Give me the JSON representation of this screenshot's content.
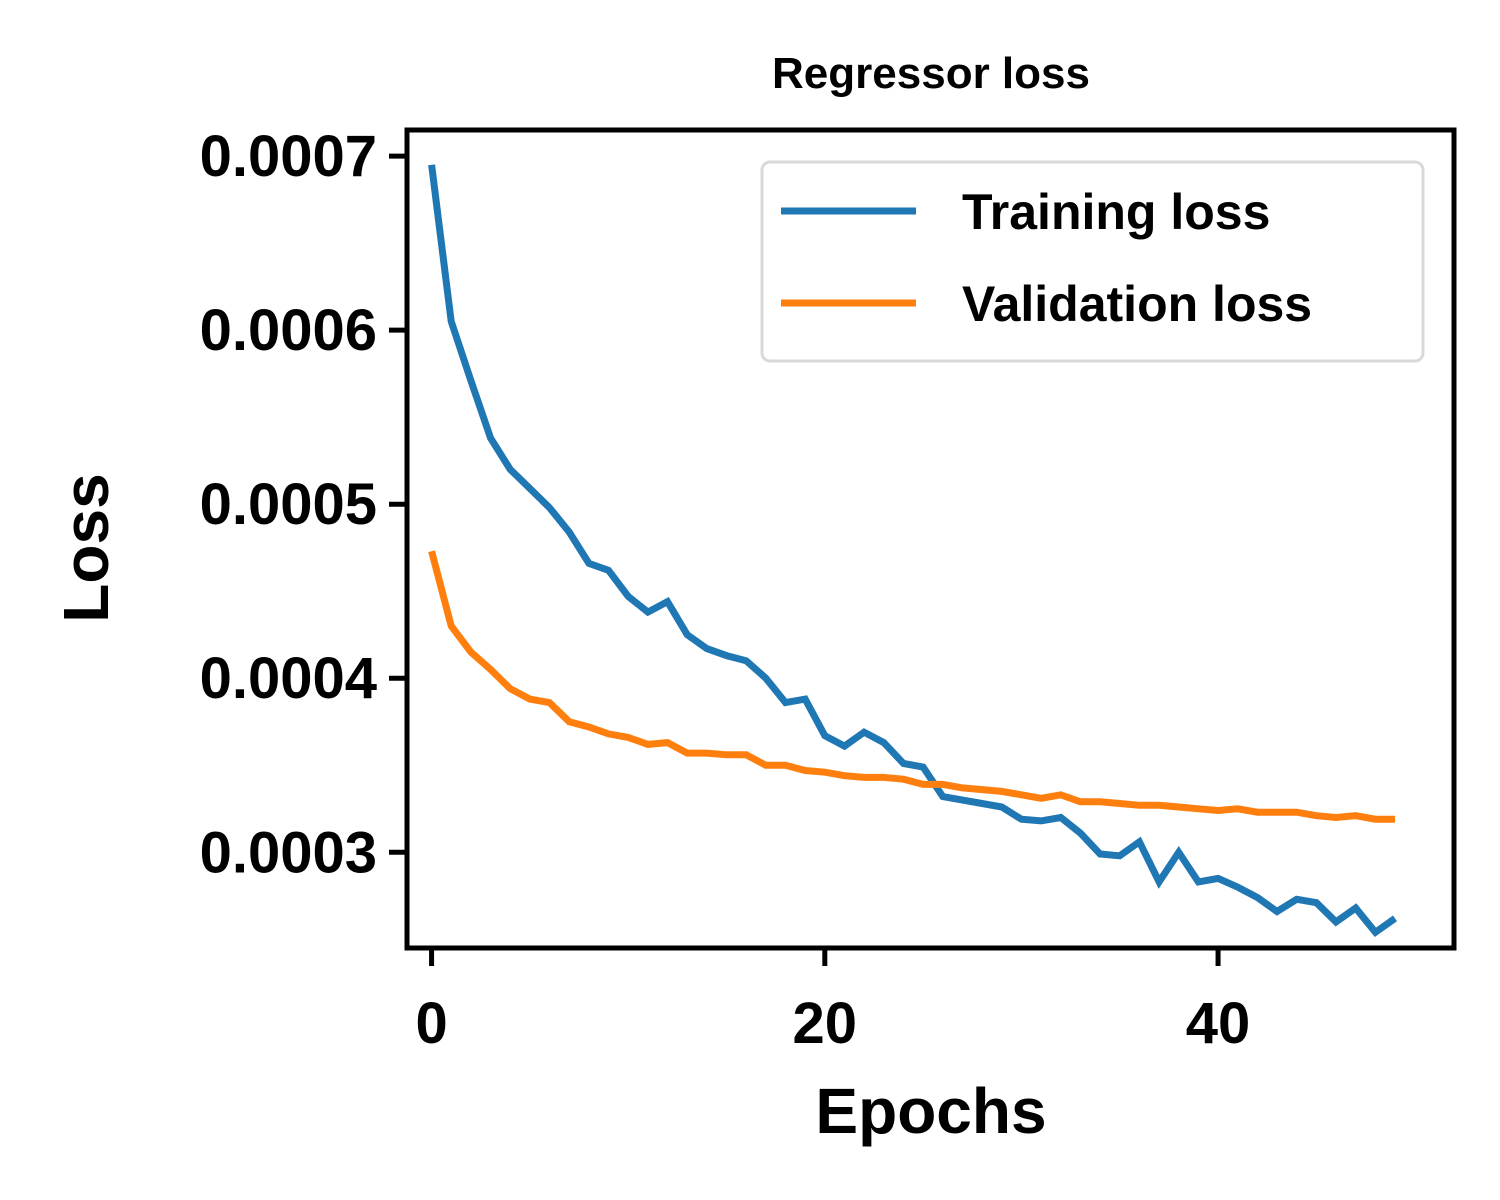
{
  "chart_data": {
    "type": "line",
    "title": "Regressor loss",
    "xlabel": "Epochs",
    "ylabel": "Loss",
    "xlim": [
      -1.25,
      52
    ],
    "ylim": [
      0.000245,
      0.000715
    ],
    "xticks": [
      0,
      20,
      40
    ],
    "xtick_labels": [
      "0",
      "20",
      "40"
    ],
    "yticks": [
      0.0003,
      0.0004,
      0.0005,
      0.0006,
      0.0007
    ],
    "ytick_labels": [
      "0.0003",
      "0.0004",
      "0.0005",
      "0.0006",
      "0.0007"
    ],
    "grid": false,
    "legend_position": "top-right",
    "x": [
      0,
      1,
      2,
      3,
      4,
      5,
      6,
      7,
      8,
      9,
      10,
      11,
      12,
      13,
      14,
      15,
      16,
      17,
      18,
      19,
      20,
      21,
      22,
      23,
      24,
      25,
      26,
      27,
      28,
      29,
      30,
      31,
      32,
      33,
      34,
      35,
      36,
      37,
      38,
      39,
      40,
      41,
      42,
      43,
      44,
      45,
      46,
      47,
      48,
      49
    ],
    "series": [
      {
        "name": "Training loss",
        "color": "#1f77b4",
        "values": [
          0.000695,
          0.000605,
          0.000571,
          0.000538,
          0.00052,
          0.000509,
          0.000498,
          0.000484,
          0.000466,
          0.000462,
          0.000447,
          0.000438,
          0.000444,
          0.000425,
          0.000417,
          0.000413,
          0.00041,
          0.0004,
          0.000386,
          0.000388,
          0.000367,
          0.000361,
          0.000369,
          0.000363,
          0.000351,
          0.000349,
          0.000332,
          0.00033,
          0.000328,
          0.000326,
          0.000319,
          0.000318,
          0.00032,
          0.000311,
          0.000299,
          0.000298,
          0.000306,
          0.000283,
          0.0003,
          0.000283,
          0.000285,
          0.00028,
          0.000274,
          0.000266,
          0.000273,
          0.000271,
          0.00026,
          0.000268,
          0.000254,
          0.000262
        ]
      },
      {
        "name": "Validation loss",
        "color": "#ff7f0e",
        "values": [
          0.000473,
          0.00043,
          0.000415,
          0.000405,
          0.000394,
          0.000388,
          0.000386,
          0.000375,
          0.000372,
          0.000368,
          0.000366,
          0.000362,
          0.000363,
          0.000357,
          0.000357,
          0.000356,
          0.000356,
          0.00035,
          0.00035,
          0.000347,
          0.000346,
          0.000344,
          0.000343,
          0.000343,
          0.000342,
          0.000339,
          0.000339,
          0.000337,
          0.000336,
          0.000335,
          0.000333,
          0.000331,
          0.000333,
          0.000329,
          0.000329,
          0.000328,
          0.000327,
          0.000327,
          0.000326,
          0.000325,
          0.000324,
          0.000325,
          0.000323,
          0.000323,
          0.000323,
          0.000321,
          0.00032,
          0.000321,
          0.000319,
          0.000319
        ]
      }
    ]
  }
}
